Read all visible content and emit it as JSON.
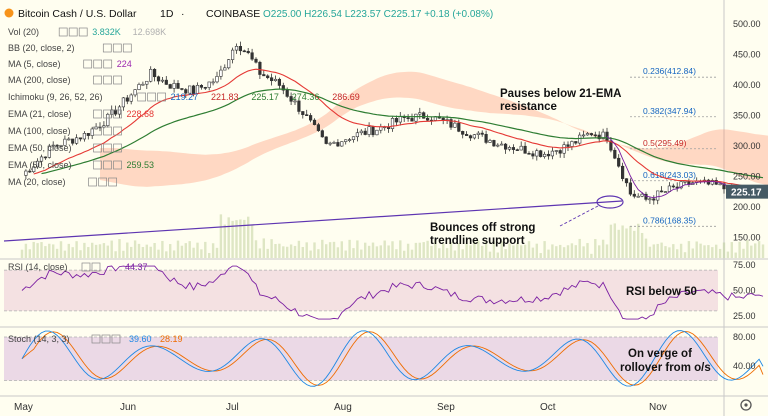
{
  "header": {
    "symbol": "Bitcoin Cash / U.S. Dollar",
    "interval": "1D",
    "exchange": "COINBASE",
    "ohlc_text": "O225.00  H226.54  L223.57  C225.17  +0.18 (+0.08%)"
  },
  "indicators": [
    {
      "label": "Vol (20)",
      "values": [
        "3.832K",
        "12.698K"
      ],
      "colors": [
        "#26a69a",
        "#b0b0b0"
      ]
    },
    {
      "label": "BB (20, close, 2)",
      "values": [],
      "colors": []
    },
    {
      "label": "MA (5, close)",
      "values": [
        "224"
      ],
      "colors": [
        "#9c27b0"
      ]
    },
    {
      "label": "MA (200, close)",
      "values": [],
      "colors": []
    },
    {
      "label": "Ichimoku (9, 26, 52, 26)",
      "values": [
        "219.27",
        "221.83",
        "225.17",
        "274.36",
        "286.69"
      ],
      "colors": [
        "#1565c0",
        "#c62828",
        "#2e7d32",
        "#2e7d32",
        "#c62828"
      ]
    },
    {
      "label": "EMA (21, close)",
      "values": [
        "228.68"
      ],
      "colors": [
        "#e53935"
      ]
    },
    {
      "label": "MA (100, close)",
      "values": [],
      "colors": []
    },
    {
      "label": "EMA (50, close)",
      "values": [],
      "colors": []
    },
    {
      "label": "EMA (50, close)",
      "values": [
        "259.53"
      ],
      "colors": [
        "#2e7d32"
      ]
    },
    {
      "label": "MA (20, close)",
      "values": [],
      "colors": []
    }
  ],
  "price_axis": {
    "ticks": [
      "500.00",
      "450.00",
      "400.00",
      "350.00",
      "300.00",
      "250.00",
      "200.00",
      "150.00"
    ],
    "last_price": "225.17"
  },
  "fib_levels": [
    {
      "label": "0.236(412.84)",
      "value": 412.84
    },
    {
      "label": "0.382(347.94)",
      "value": 347.94
    },
    {
      "label": "0.5(295.49)",
      "value": 295.49
    },
    {
      "label": "0.618(243.03)",
      "value": 243.03
    },
    {
      "label": "0.786(168.35)",
      "value": 168.35
    }
  ],
  "annotations": {
    "resistance_line1": "Pauses below 21-EMA",
    "resistance_line2": "resistance",
    "support_line1": "Bounces off strong",
    "support_line2": "trendline support",
    "rsi_note": "RSI below 50",
    "stoch_note_line1": "On verge of",
    "stoch_note_line2": "rollover from o/s"
  },
  "rsi": {
    "label": "RSI (14, close)",
    "value": "44.37",
    "ticks": [
      "75.00",
      "50.00",
      "25.00"
    ]
  },
  "stoch": {
    "label": "Stoch (14, 3, 3)",
    "k_value": "39.60",
    "d_value": "28.19",
    "ticks": [
      "80.00",
      "40.00"
    ]
  },
  "time_axis": [
    "May",
    "Jun",
    "Jul",
    "Aug",
    "Sep",
    "Oct",
    "Nov"
  ],
  "colors": {
    "background": "#fffef0",
    "up": "#2e2e2e",
    "down": "#2e2e2e",
    "ema21": "#e53935",
    "ema50": "#2e7d32",
    "ma5": "#7b1fa2",
    "trendline": "#5e35b1",
    "cloud": "#ff8a65",
    "cloud_green": "#9ccc65",
    "rsi": "#7b1fa2",
    "stoch_k": "#1e88e5",
    "stoch_d": "#ef6c00"
  },
  "chart_data": {
    "type": "candlestick",
    "title": "Bitcoin Cash / U.S. Dollar, 1D, COINBASE",
    "x_range": [
      "May",
      "Oct"
    ],
    "ylim": [
      125,
      525
    ],
    "close_series": [
      {
        "x": "May",
        "y": 255
      },
      {
        "x": "May",
        "y": 300
      },
      {
        "x": "May",
        "y": 310
      },
      {
        "x": "May",
        "y": 330
      },
      {
        "x": "May",
        "y": 390
      },
      {
        "x": "Jun",
        "y": 420
      },
      {
        "x": "Jun",
        "y": 400
      },
      {
        "x": "Jun",
        "y": 395
      },
      {
        "x": "Jun",
        "y": 410
      },
      {
        "x": "Jun",
        "y": 460
      },
      {
        "x": "Jul",
        "y": 420
      },
      {
        "x": "Jul",
        "y": 390
      },
      {
        "x": "Jul",
        "y": 330
      },
      {
        "x": "Jul",
        "y": 305
      },
      {
        "x": "Jul",
        "y": 325
      },
      {
        "x": "Aug",
        "y": 335
      },
      {
        "x": "Aug",
        "y": 355
      },
      {
        "x": "Aug",
        "y": 320
      },
      {
        "x": "Aug",
        "y": 300
      },
      {
        "x": "Aug",
        "y": 290
      },
      {
        "x": "Sep",
        "y": 290
      },
      {
        "x": "Sep",
        "y": 300
      },
      {
        "x": "Sep",
        "y": 320
      },
      {
        "x": "Sep",
        "y": 220
      },
      {
        "x": "Sep",
        "y": 225
      },
      {
        "x": "Oct",
        "y": 235
      },
      {
        "x": "Oct",
        "y": 230
      },
      {
        "x": "Oct",
        "y": 222
      },
      {
        "x": "Oct",
        "y": 225.17
      }
    ],
    "ema21_last": 228.68,
    "ema50_last": 259.53,
    "rsi_last": 44.37,
    "stoch_k_last": 39.6,
    "stoch_d_last": 28.19
  }
}
